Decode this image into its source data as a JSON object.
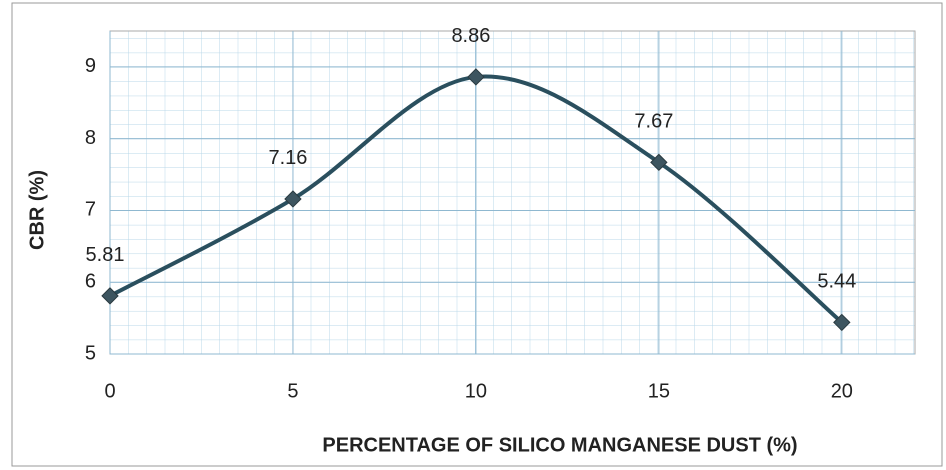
{
  "chart_data": {
    "type": "line",
    "x_label": "PERCENTAGE OF SILICO MANGANESE DUST (%)",
    "y_label": "CBR (%)",
    "x": [
      0,
      5,
      10,
      15,
      20
    ],
    "series": [
      {
        "name": "CBR",
        "color": "#2a4f5e",
        "values": [
          5.81,
          7.16,
          8.86,
          7.67,
          5.44
        ]
      }
    ],
    "xlim": [
      0,
      22
    ],
    "xticks": [
      0,
      5,
      10,
      15,
      20
    ],
    "ylim": [
      5,
      9.5
    ],
    "yticks": [
      5,
      6,
      7,
      8,
      9
    ],
    "grid": true,
    "smooth": true,
    "marker": "diamond"
  }
}
